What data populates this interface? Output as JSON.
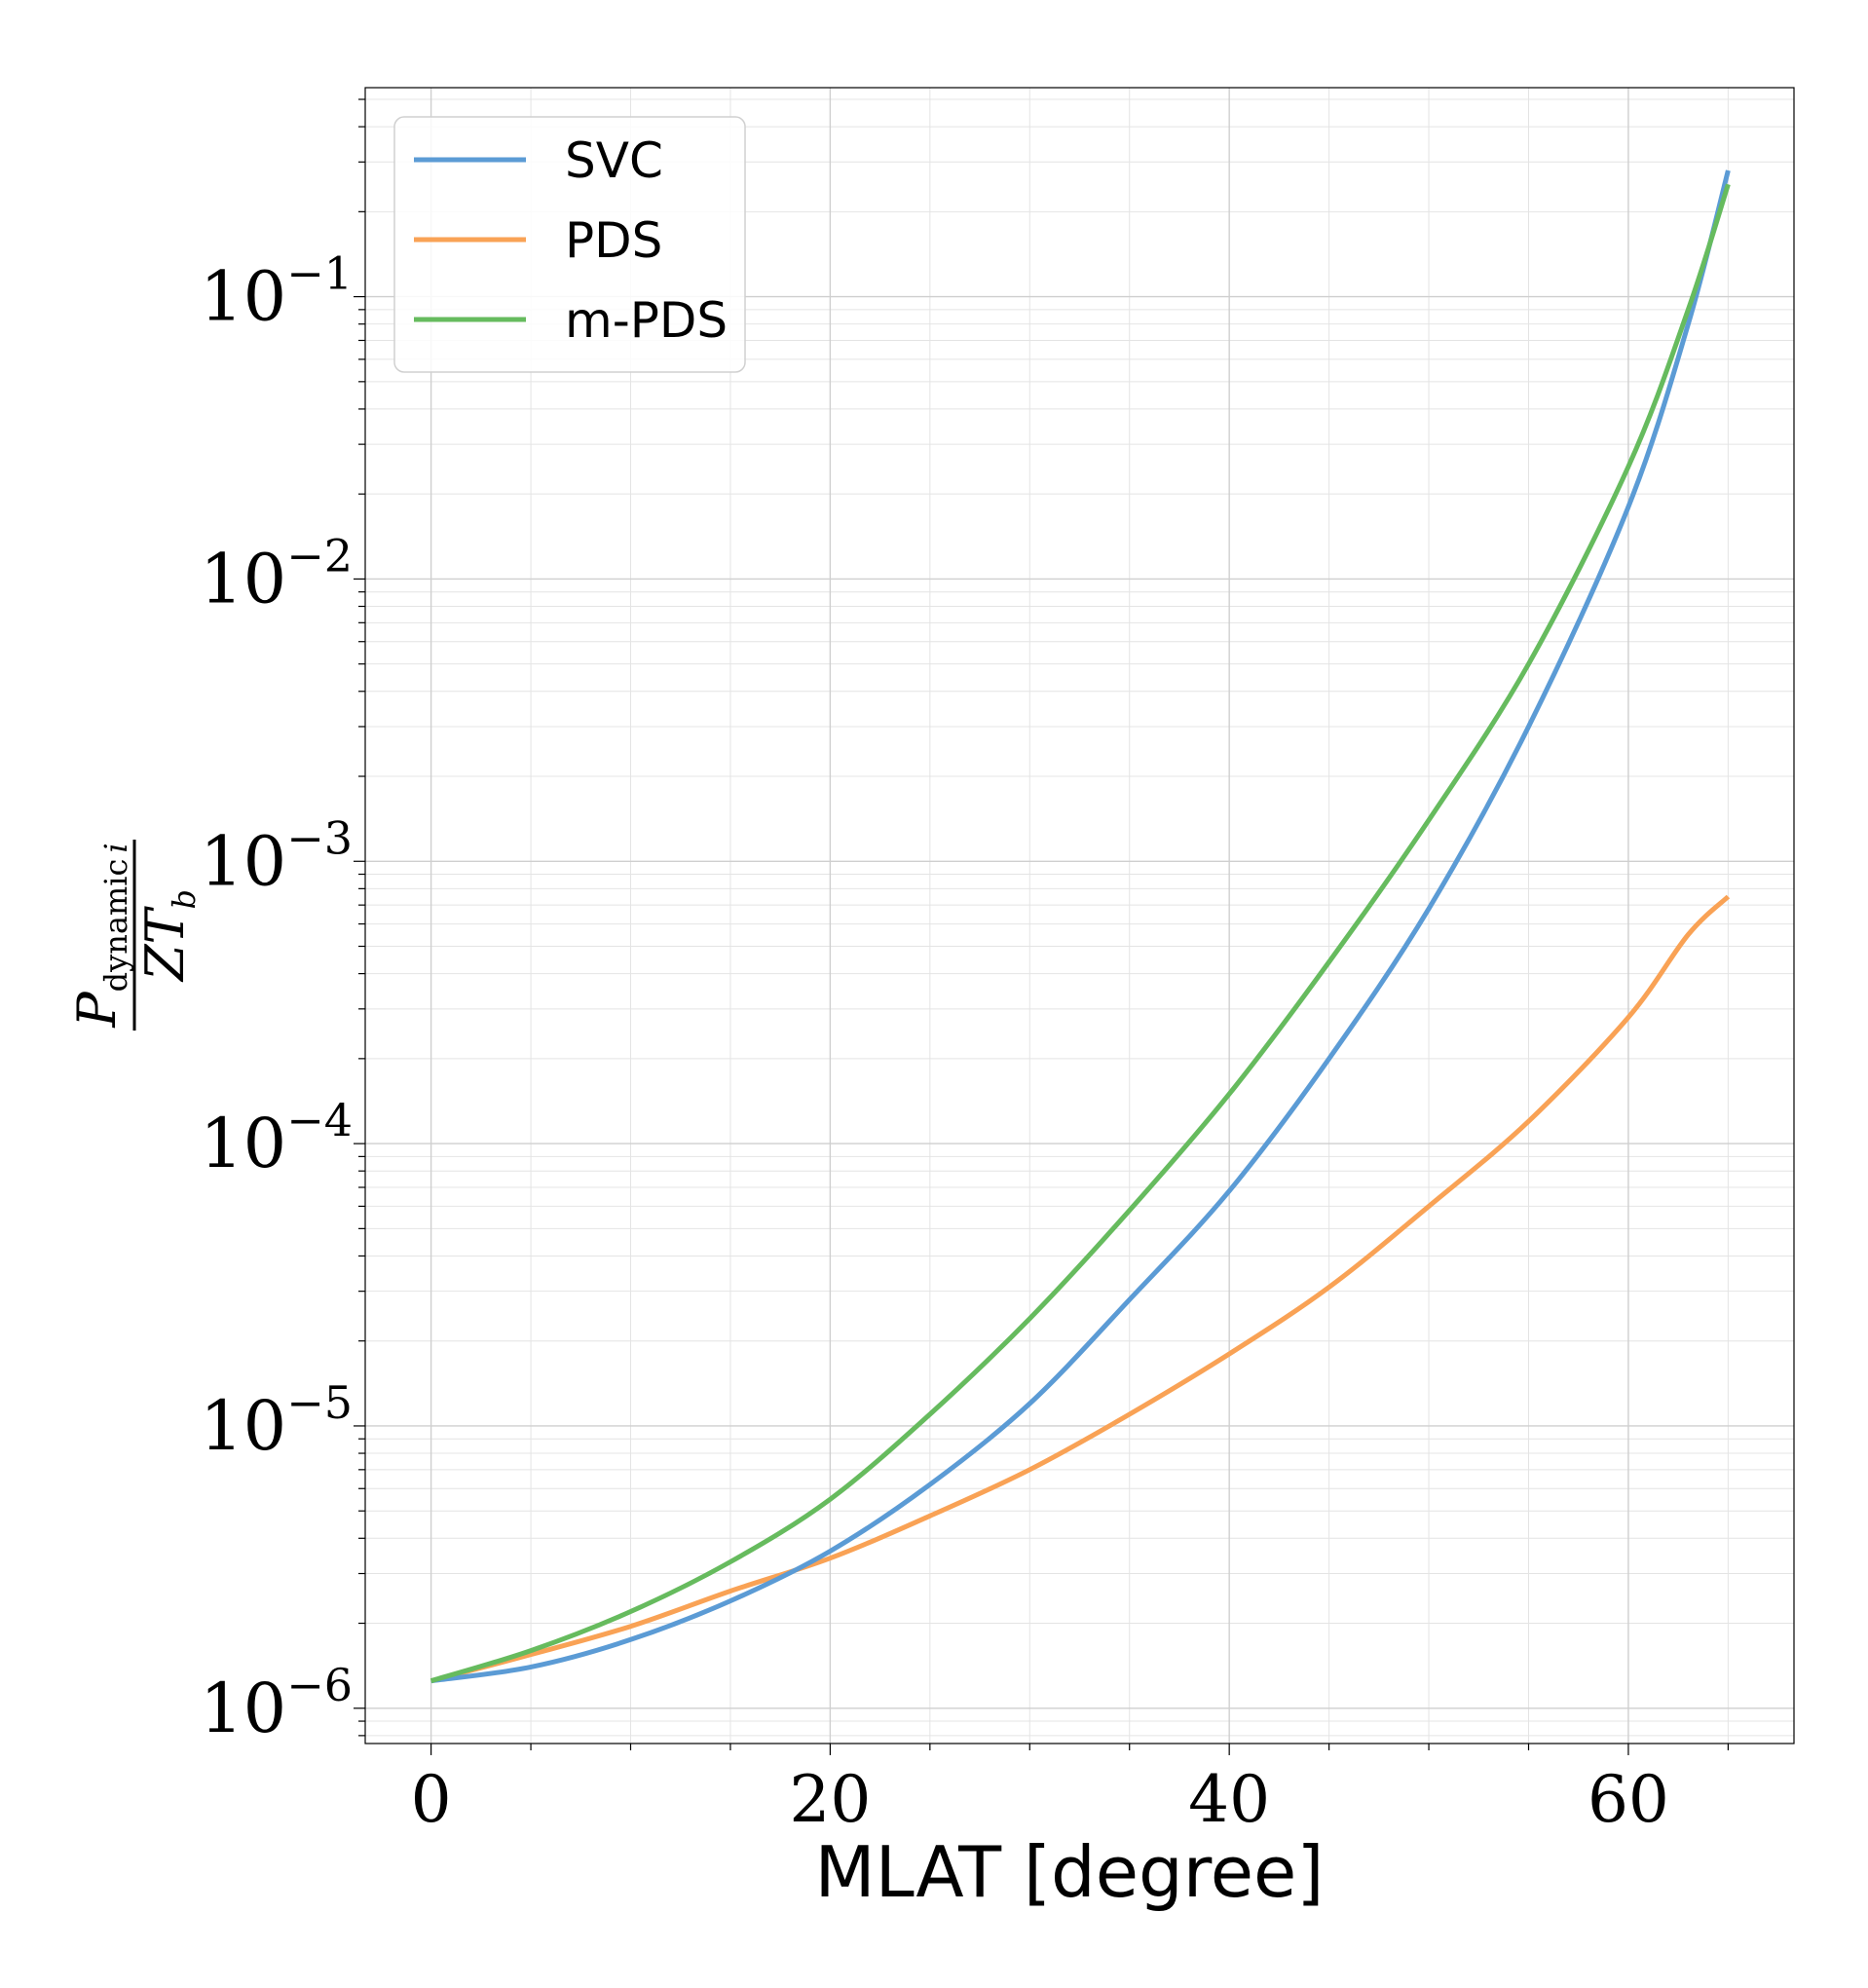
{
  "chart_data": {
    "type": "line",
    "xlabel": "MLAT [degree]",
    "ylabel": {
      "main": "P",
      "subscript": "dynamic",
      "subscript_var": "i",
      "denominator": "ZT",
      "denominator_sub": "b"
    },
    "xlim": [
      -3.3,
      68.3
    ],
    "ylim": [
      7.5e-07,
      0.55
    ],
    "yscale": "log",
    "grid": true,
    "legend": "top-left",
    "x_ticks": [
      0,
      20,
      40,
      60
    ],
    "y_ticks": [
      {
        "value": 1e-06,
        "base": "10",
        "exp": "−6"
      },
      {
        "value": 1e-05,
        "base": "10",
        "exp": "−5"
      },
      {
        "value": 0.0001,
        "base": "10",
        "exp": "−4"
      },
      {
        "value": 0.001,
        "base": "10",
        "exp": "−3"
      },
      {
        "value": 0.01,
        "base": "10",
        "exp": "−2"
      },
      {
        "value": 0.1,
        "base": "10",
        "exp": "−1"
      }
    ],
    "x": [
      0,
      5,
      10,
      15,
      20,
      25,
      30,
      35,
      40,
      45,
      50,
      55,
      60,
      63,
      65
    ],
    "series": [
      {
        "name": "SVC",
        "color": "#5b9bd5",
        "values": [
          1.25e-06,
          1.4e-06,
          1.75e-06,
          2.4e-06,
          3.6e-06,
          6.2e-06,
          1.2e-05,
          2.8e-05,
          6.8e-05,
          0.0002,
          0.00068,
          0.003,
          0.018,
          0.08,
          0.28
        ]
      },
      {
        "name": "PDS",
        "color": "#f9a255",
        "values": [
          1.25e-06,
          1.55e-06,
          1.95e-06,
          2.6e-06,
          3.4e-06,
          4.8e-06,
          7e-06,
          1.1e-05,
          1.8e-05,
          3.1e-05,
          6e-05,
          0.00012,
          0.00028,
          0.00055,
          0.00075
        ]
      },
      {
        "name": "m-PDS",
        "color": "#66bb5e",
        "values": [
          1.25e-06,
          1.6e-06,
          2.2e-06,
          3.3e-06,
          5.5e-06,
          1.1e-05,
          2.4e-05,
          5.8e-05,
          0.00015,
          0.00044,
          0.0014,
          0.005,
          0.025,
          0.09,
          0.25
        ]
      }
    ]
  }
}
